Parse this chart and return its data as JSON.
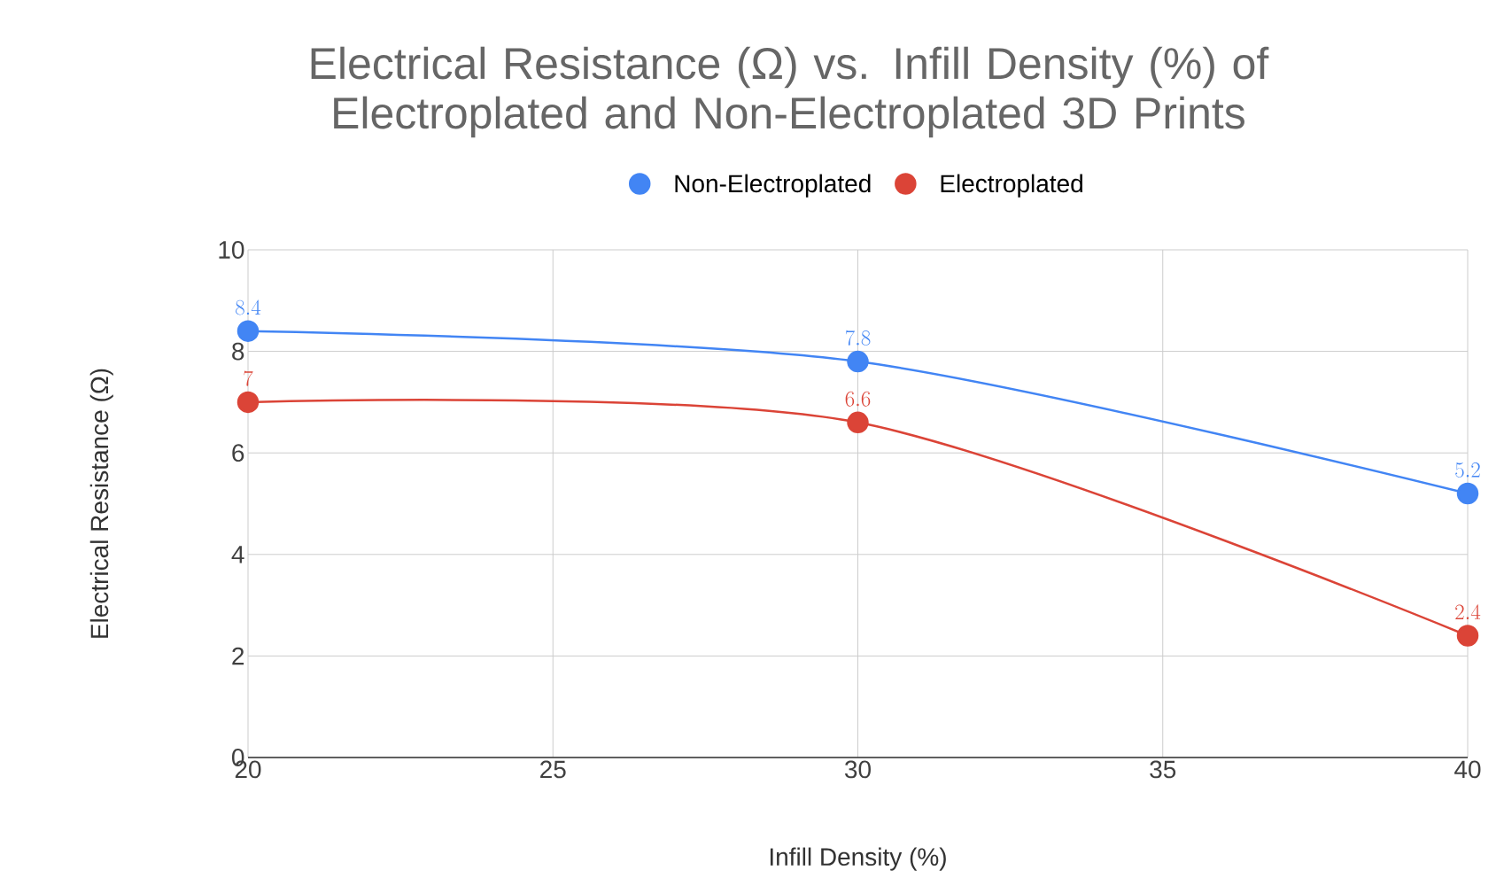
{
  "chart_data": {
    "type": "line",
    "title": "Electrical Resistance (Ω) vs. Infill Density (%) of Electroplated and Non-Electroplated 3D Prints",
    "xlabel": "Infill Density (%)",
    "ylabel": "Electrical Resistance (Ω)",
    "x": [
      20,
      30,
      40
    ],
    "series": [
      {
        "name": "Non-Electroplated",
        "color": "#4285f4",
        "values": [
          8.4,
          7.8,
          5.2
        ]
      },
      {
        "name": "Electroplated",
        "color": "#db4437",
        "values": [
          7,
          6.6,
          2.4
        ]
      }
    ],
    "xlim": [
      20,
      40
    ],
    "xticks": [
      20,
      25,
      30,
      35,
      40
    ],
    "ylim": [
      0,
      10
    ],
    "yticks": [
      0,
      2,
      4,
      6,
      8,
      10
    ],
    "grid": true,
    "legend": "top",
    "marker": "circle",
    "line_style": "solid",
    "data_labels": true
  }
}
